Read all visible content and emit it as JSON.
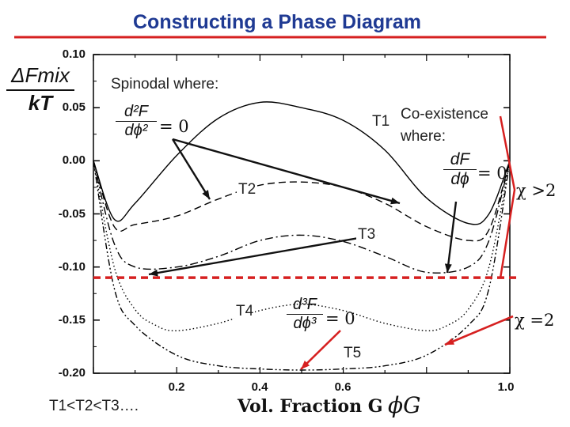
{
  "slide": {
    "title": "Constructing a Phase Diagram"
  },
  "chart_data": {
    "type": "line",
    "title": "Constructing a Phase Diagram",
    "xlabel": "Vol. Fraction G",
    "ylabel": "ΔFmix / kT",
    "xlim": [
      0.0,
      1.0
    ],
    "ylim": [
      -0.2,
      0.1
    ],
    "x_ticks": [
      "0.2",
      "0.4",
      "0.6",
      "1.0"
    ],
    "y_ticks": [
      "0.10",
      "0.05",
      "0.00",
      "-0.05",
      "-0.10",
      "-0.15",
      "-0.20"
    ],
    "series": [
      {
        "name": "T1",
        "style": "solid",
        "x": [
          0.0,
          0.05,
          0.1,
          0.2,
          0.3,
          0.4,
          0.5,
          0.6,
          0.7,
          0.8,
          0.9,
          0.95,
          1.0
        ],
        "values": [
          0.0,
          -0.055,
          -0.04,
          0.005,
          0.04,
          0.055,
          0.05,
          0.038,
          0.01,
          -0.035,
          -0.059,
          -0.05,
          0.0
        ]
      },
      {
        "name": "T2",
        "style": "dashed",
        "x": [
          0.0,
          0.05,
          0.1,
          0.2,
          0.3,
          0.4,
          0.5,
          0.6,
          0.7,
          0.8,
          0.9,
          0.95,
          1.0
        ],
        "values": [
          0.0,
          -0.062,
          -0.06,
          -0.052,
          -0.036,
          -0.023,
          -0.02,
          -0.025,
          -0.04,
          -0.062,
          -0.075,
          -0.065,
          0.0
        ]
      },
      {
        "name": "T3",
        "style": "dashdot",
        "x": [
          0.0,
          0.05,
          0.1,
          0.2,
          0.3,
          0.4,
          0.5,
          0.6,
          0.7,
          0.8,
          0.9,
          0.95,
          1.0
        ],
        "values": [
          0.0,
          -0.078,
          -0.1,
          -0.1,
          -0.09,
          -0.075,
          -0.07,
          -0.076,
          -0.09,
          -0.105,
          -0.1,
          -0.075,
          0.0
        ]
      },
      {
        "name": "T4",
        "style": "dotted",
        "x": [
          0.0,
          0.05,
          0.1,
          0.15,
          0.2,
          0.3,
          0.4,
          0.5,
          0.6,
          0.7,
          0.8,
          0.85,
          0.9,
          0.95,
          1.0
        ],
        "values": [
          0.0,
          -0.1,
          -0.14,
          -0.155,
          -0.16,
          -0.153,
          -0.141,
          -0.135,
          -0.141,
          -0.153,
          -0.16,
          -0.155,
          -0.14,
          -0.1,
          0.0
        ]
      },
      {
        "name": "T5",
        "style": "dashdotdot",
        "x": [
          0.0,
          0.05,
          0.1,
          0.2,
          0.3,
          0.4,
          0.5,
          0.6,
          0.7,
          0.8,
          0.9,
          0.95,
          1.0
        ],
        "values": [
          0.0,
          -0.12,
          -0.155,
          -0.183,
          -0.193,
          -0.196,
          -0.197,
          -0.196,
          -0.193,
          -0.183,
          -0.155,
          -0.12,
          0.0
        ]
      }
    ],
    "reference_lines": [
      {
        "y": -0.11,
        "color": "#d62020",
        "style": "dashed"
      }
    ],
    "annotations": {
      "spinodal": "Spinodal where:",
      "spinodal_formula_num": "d²F",
      "spinodal_formula_den": "dϕ²",
      "eq_zero": "= 0",
      "coexistence_line1": "Co-existence",
      "coexistence_line2": "where:",
      "coexistence_formula_num": "dF",
      "coexistence_formula_den": "dϕ",
      "critical_formula_num": "d³F",
      "critical_formula_den": "dϕ³",
      "chi_gt": "χ >2",
      "chi_eq": "χ =2",
      "order": "T1<T2<T3….",
      "axis_symbol": "ϕG",
      "ylabel_num": "ΔFmix",
      "ylabel_den": "kT",
      "labels": {
        "T1": "T1",
        "T2": "T2",
        "T3": "T3",
        "T4": "T4",
        "T5": "T5"
      }
    }
  }
}
